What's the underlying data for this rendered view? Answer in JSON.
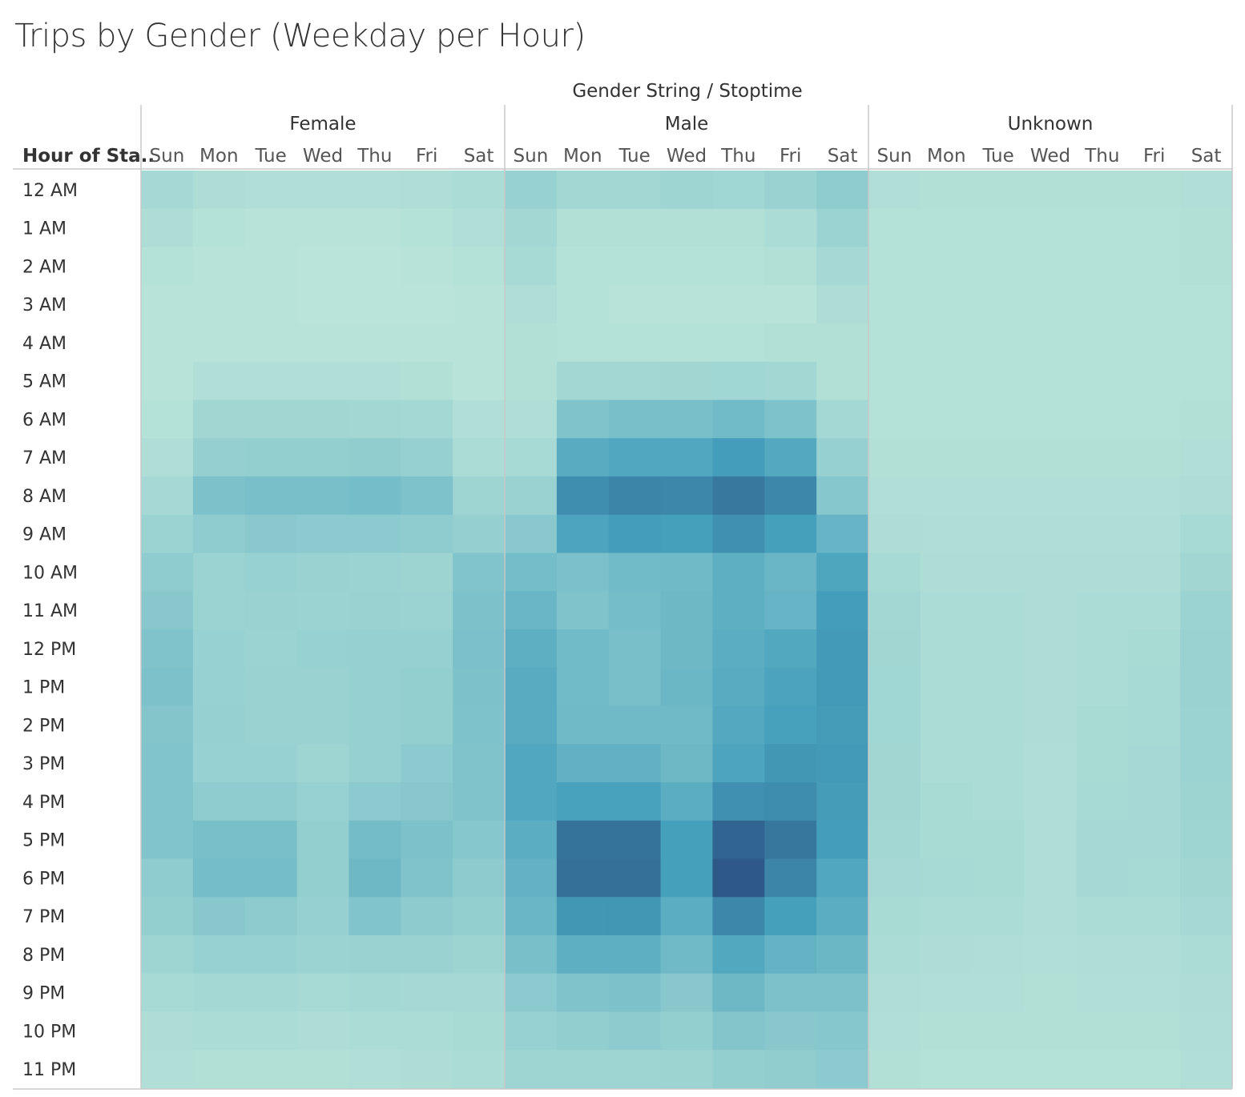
{
  "title": "Trips by Gender (Weekday per Hour)",
  "chart_data": {
    "type": "heatmap",
    "title": "Trips by Gender (Weekday per Hour)",
    "column_header": "Gender String / Stoptime",
    "row_header": "Hour of Sta..",
    "groups": [
      "Female",
      "Male",
      "Unknown"
    ],
    "days": [
      "Sun",
      "Mon",
      "Tue",
      "Wed",
      "Thu",
      "Fri",
      "Sat"
    ],
    "hours": [
      "12 AM",
      "1 AM",
      "2 AM",
      "3 AM",
      "4 AM",
      "5 AM",
      "6 AM",
      "7 AM",
      "8 AM",
      "9 AM",
      "10 AM",
      "11 AM",
      "12 PM",
      "1 PM",
      "2 PM",
      "3 PM",
      "4 PM",
      "5 PM",
      "6 PM",
      "7 PM",
      "8 PM",
      "9 PM",
      "10 PM",
      "11 PM"
    ],
    "color_scale": {
      "low": "#bde6da",
      "mid1": "#8fcccf",
      "mid2": "#45a0bc",
      "high": "#2c5585"
    },
    "values": {
      "Female": [
        [
          0.15,
          0.1,
          0.08,
          0.08,
          0.08,
          0.09,
          0.12
        ],
        [
          0.1,
          0.05,
          0.04,
          0.03,
          0.03,
          0.05,
          0.08
        ],
        [
          0.06,
          0.03,
          0.03,
          0.02,
          0.02,
          0.03,
          0.05
        ],
        [
          0.04,
          0.03,
          0.03,
          0.02,
          0.02,
          0.02,
          0.04
        ],
        [
          0.03,
          0.03,
          0.03,
          0.03,
          0.03,
          0.03,
          0.03
        ],
        [
          0.04,
          0.08,
          0.08,
          0.08,
          0.08,
          0.07,
          0.04
        ],
        [
          0.06,
          0.18,
          0.18,
          0.18,
          0.17,
          0.16,
          0.08
        ],
        [
          0.09,
          0.26,
          0.27,
          0.27,
          0.29,
          0.25,
          0.12
        ],
        [
          0.15,
          0.4,
          0.42,
          0.42,
          0.44,
          0.39,
          0.2
        ],
        [
          0.22,
          0.3,
          0.33,
          0.32,
          0.32,
          0.3,
          0.26
        ],
        [
          0.3,
          0.22,
          0.24,
          0.23,
          0.22,
          0.21,
          0.37
        ],
        [
          0.34,
          0.22,
          0.23,
          0.22,
          0.23,
          0.22,
          0.4
        ],
        [
          0.38,
          0.24,
          0.22,
          0.24,
          0.25,
          0.25,
          0.41
        ],
        [
          0.4,
          0.24,
          0.23,
          0.23,
          0.25,
          0.27,
          0.4
        ],
        [
          0.36,
          0.25,
          0.23,
          0.23,
          0.25,
          0.27,
          0.39
        ],
        [
          0.37,
          0.24,
          0.24,
          0.2,
          0.25,
          0.32,
          0.38
        ],
        [
          0.37,
          0.3,
          0.3,
          0.24,
          0.32,
          0.34,
          0.38
        ],
        [
          0.37,
          0.42,
          0.42,
          0.27,
          0.45,
          0.4,
          0.35
        ],
        [
          0.3,
          0.44,
          0.44,
          0.27,
          0.48,
          0.38,
          0.31
        ],
        [
          0.27,
          0.34,
          0.31,
          0.25,
          0.37,
          0.31,
          0.27
        ],
        [
          0.2,
          0.24,
          0.24,
          0.22,
          0.23,
          0.23,
          0.21
        ],
        [
          0.14,
          0.16,
          0.16,
          0.14,
          0.16,
          0.15,
          0.15
        ],
        [
          0.1,
          0.12,
          0.11,
          0.1,
          0.12,
          0.12,
          0.13
        ],
        [
          0.08,
          0.07,
          0.07,
          0.07,
          0.08,
          0.1,
          0.12
        ]
      ],
      "Male": [
        [
          0.24,
          0.17,
          0.17,
          0.2,
          0.19,
          0.23,
          0.3
        ],
        [
          0.17,
          0.07,
          0.07,
          0.07,
          0.07,
          0.12,
          0.22
        ],
        [
          0.14,
          0.05,
          0.05,
          0.05,
          0.05,
          0.07,
          0.15
        ],
        [
          0.09,
          0.05,
          0.04,
          0.04,
          0.04,
          0.04,
          0.1
        ],
        [
          0.07,
          0.06,
          0.06,
          0.06,
          0.06,
          0.07,
          0.07
        ],
        [
          0.07,
          0.17,
          0.17,
          0.18,
          0.19,
          0.17,
          0.07
        ],
        [
          0.09,
          0.38,
          0.42,
          0.42,
          0.46,
          0.39,
          0.16
        ],
        [
          0.14,
          0.6,
          0.64,
          0.64,
          0.72,
          0.62,
          0.25
        ],
        [
          0.23,
          0.82,
          0.88,
          0.86,
          0.97,
          0.86,
          0.35
        ],
        [
          0.33,
          0.66,
          0.72,
          0.7,
          0.8,
          0.7,
          0.52
        ],
        [
          0.44,
          0.41,
          0.46,
          0.47,
          0.56,
          0.5,
          0.65
        ],
        [
          0.5,
          0.38,
          0.44,
          0.48,
          0.56,
          0.52,
          0.72
        ],
        [
          0.56,
          0.46,
          0.42,
          0.48,
          0.58,
          0.63,
          0.74
        ],
        [
          0.6,
          0.46,
          0.42,
          0.49,
          0.6,
          0.67,
          0.74
        ],
        [
          0.6,
          0.47,
          0.47,
          0.47,
          0.62,
          0.69,
          0.73
        ],
        [
          0.64,
          0.55,
          0.55,
          0.48,
          0.66,
          0.76,
          0.74
        ],
        [
          0.64,
          0.68,
          0.68,
          0.58,
          0.8,
          0.83,
          0.73
        ],
        [
          0.58,
          1.0,
          1.0,
          0.7,
          1.1,
          0.98,
          0.72
        ],
        [
          0.54,
          1.02,
          1.02,
          0.7,
          1.18,
          0.88,
          0.64
        ],
        [
          0.5,
          0.76,
          0.76,
          0.58,
          0.86,
          0.7,
          0.58
        ],
        [
          0.42,
          0.56,
          0.56,
          0.47,
          0.63,
          0.53,
          0.49
        ],
        [
          0.32,
          0.38,
          0.4,
          0.34,
          0.48,
          0.4,
          0.4
        ],
        [
          0.24,
          0.28,
          0.31,
          0.27,
          0.36,
          0.34,
          0.35
        ],
        [
          0.2,
          0.2,
          0.2,
          0.21,
          0.27,
          0.29,
          0.32
        ]
      ],
      "Unknown": [
        [
          0.08,
          0.07,
          0.07,
          0.07,
          0.07,
          0.07,
          0.08
        ],
        [
          0.06,
          0.06,
          0.06,
          0.06,
          0.06,
          0.06,
          0.07
        ],
        [
          0.06,
          0.06,
          0.06,
          0.06,
          0.06,
          0.06,
          0.07
        ],
        [
          0.06,
          0.06,
          0.06,
          0.06,
          0.06,
          0.06,
          0.06
        ],
        [
          0.06,
          0.06,
          0.06,
          0.06,
          0.06,
          0.06,
          0.06
        ],
        [
          0.06,
          0.06,
          0.06,
          0.06,
          0.06,
          0.06,
          0.06
        ],
        [
          0.06,
          0.06,
          0.06,
          0.06,
          0.06,
          0.06,
          0.07
        ],
        [
          0.07,
          0.07,
          0.07,
          0.07,
          0.07,
          0.07,
          0.08
        ],
        [
          0.08,
          0.08,
          0.08,
          0.08,
          0.08,
          0.08,
          0.1
        ],
        [
          0.1,
          0.09,
          0.09,
          0.09,
          0.09,
          0.09,
          0.14
        ],
        [
          0.14,
          0.1,
          0.1,
          0.1,
          0.1,
          0.1,
          0.18
        ],
        [
          0.17,
          0.11,
          0.11,
          0.1,
          0.11,
          0.12,
          0.22
        ],
        [
          0.18,
          0.12,
          0.11,
          0.1,
          0.12,
          0.13,
          0.23
        ],
        [
          0.19,
          0.12,
          0.11,
          0.1,
          0.12,
          0.14,
          0.23
        ],
        [
          0.19,
          0.12,
          0.11,
          0.1,
          0.13,
          0.14,
          0.22
        ],
        [
          0.18,
          0.12,
          0.11,
          0.09,
          0.13,
          0.15,
          0.22
        ],
        [
          0.18,
          0.13,
          0.12,
          0.09,
          0.14,
          0.15,
          0.21
        ],
        [
          0.17,
          0.13,
          0.13,
          0.09,
          0.15,
          0.15,
          0.2
        ],
        [
          0.15,
          0.14,
          0.13,
          0.09,
          0.15,
          0.14,
          0.18
        ],
        [
          0.13,
          0.11,
          0.11,
          0.09,
          0.12,
          0.12,
          0.15
        ],
        [
          0.11,
          0.1,
          0.09,
          0.08,
          0.09,
          0.09,
          0.12
        ],
        [
          0.09,
          0.08,
          0.08,
          0.07,
          0.08,
          0.08,
          0.1
        ],
        [
          0.08,
          0.07,
          0.07,
          0.07,
          0.07,
          0.07,
          0.09
        ],
        [
          0.07,
          0.06,
          0.06,
          0.06,
          0.06,
          0.06,
          0.08
        ]
      ]
    }
  }
}
